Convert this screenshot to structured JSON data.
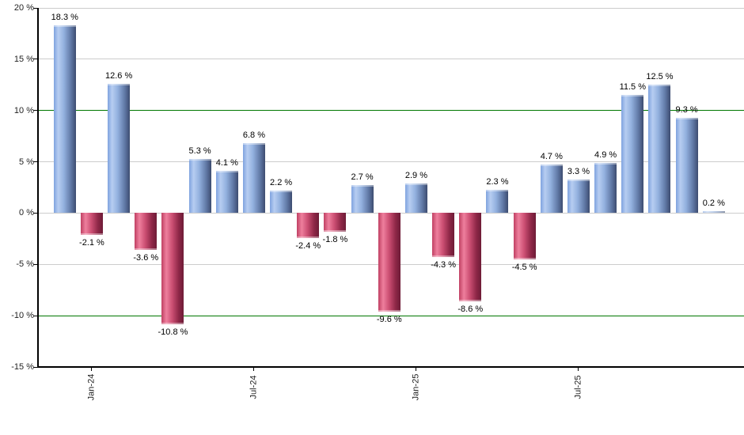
{
  "chart_data": {
    "type": "bar",
    "title": "",
    "unit": "%",
    "bars": [
      {
        "value": 18.3,
        "label": "18.3 %"
      },
      {
        "value": -2.1,
        "label": "-2.1 %"
      },
      {
        "value": 12.6,
        "label": "12.6 %"
      },
      {
        "value": -3.6,
        "label": "-3.6 %"
      },
      {
        "value": -10.8,
        "label": "-10.8 %"
      },
      {
        "value": 5.3,
        "label": "5.3 %"
      },
      {
        "value": 4.1,
        "label": "4.1 %"
      },
      {
        "value": 6.8,
        "label": "6.8 %"
      },
      {
        "value": 2.2,
        "label": "2.2 %"
      },
      {
        "value": -2.4,
        "label": "-2.4 %"
      },
      {
        "value": -1.8,
        "label": "-1.8 %"
      },
      {
        "value": 2.7,
        "label": "2.7 %"
      },
      {
        "value": -9.6,
        "label": "-9.6 %"
      },
      {
        "value": 2.9,
        "label": "2.9 %"
      },
      {
        "value": -4.3,
        "label": "-4.3 %"
      },
      {
        "value": -8.6,
        "label": "-8.6 %"
      },
      {
        "value": 2.3,
        "label": "2.3 %"
      },
      {
        "value": -4.5,
        "label": "-4.5 %"
      },
      {
        "value": 4.7,
        "label": "4.7 %"
      },
      {
        "value": 3.3,
        "label": "3.3 %"
      },
      {
        "value": 4.9,
        "label": "4.9 %"
      },
      {
        "value": 11.5,
        "label": "11.5 %"
      },
      {
        "value": 12.5,
        "label": "12.5 %"
      },
      {
        "value": 9.3,
        "label": "9.3 %"
      },
      {
        "value": 0.2,
        "label": "0.2 %"
      }
    ],
    "x_ticks": [
      {
        "bar_index": 1,
        "label": "Jan-24"
      },
      {
        "bar_index": 7,
        "label": "Jul-24"
      },
      {
        "bar_index": 13,
        "label": "Jan-25"
      },
      {
        "bar_index": 19,
        "label": "Jul-25"
      }
    ],
    "y_axis": {
      "range": [
        -15,
        20
      ],
      "ticks": [
        {
          "value": 20,
          "label": "20 %"
        },
        {
          "value": 15,
          "label": "15 %"
        },
        {
          "value": 10,
          "label": "10 %"
        },
        {
          "value": 5,
          "label": "5 %"
        },
        {
          "value": 0,
          "label": "0 %"
        },
        {
          "value": -5,
          "label": "-5 %"
        },
        {
          "value": -10,
          "label": "-10 %"
        },
        {
          "value": -15,
          "label": "-15 %"
        }
      ]
    },
    "reference_lines": [
      {
        "value": 10,
        "color": "#007700"
      },
      {
        "value": -10,
        "color": "#007700"
      }
    ],
    "grid": true,
    "legend": "none",
    "colors": {
      "positive_gradient": [
        {
          "color": "#7FA3DF",
          "pos": 0
        },
        {
          "color": "#B7CDF1",
          "pos": 20
        },
        {
          "color": "#93B1DF",
          "pos": 45
        },
        {
          "color": "#5F77A4",
          "pos": 78
        },
        {
          "color": "#3D4C70",
          "pos": 100
        }
      ],
      "negative_gradient": [
        {
          "color": "#C04063",
          "pos": 0
        },
        {
          "color": "#EE7F9D",
          "pos": 22
        },
        {
          "color": "#CC4F73",
          "pos": 48
        },
        {
          "color": "#8E2747",
          "pos": 78
        },
        {
          "color": "#6E1C37",
          "pos": 100
        }
      ],
      "gridline": "#cccccc",
      "axis": "#000000",
      "value_label": "#000000",
      "tick_label": "#222222",
      "background": "#ffffff"
    }
  }
}
